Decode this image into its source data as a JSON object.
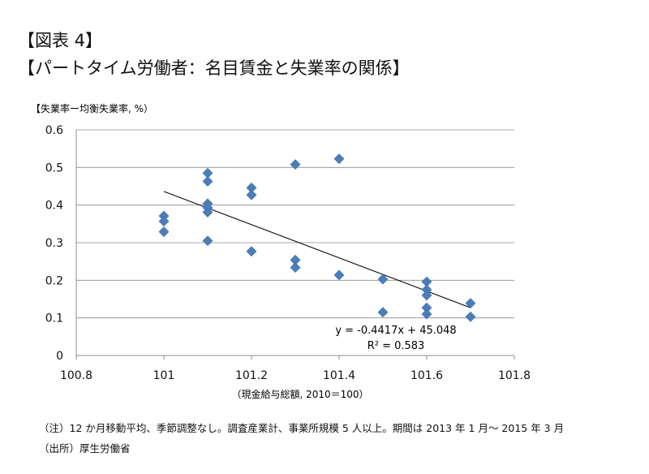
{
  "figure": {
    "number_label": "【図表 4】",
    "title": "【パートタイム労働者：名目賃金と失業率の関係】"
  },
  "chart_data": {
    "type": "scatter",
    "title": "【パートタイム労働者：名目賃金と失業率の関係】",
    "ylabel": "【失業率ー均衡失業率, %）",
    "xlabel": "（現金給与総額, 2010＝100）",
    "xlim": [
      100.8,
      101.8
    ],
    "ylim": [
      0,
      0.6
    ],
    "xticks": [
      "100.8",
      "101",
      "101.2",
      "101.4",
      "101.6",
      "101.8"
    ],
    "yticks": [
      "0",
      "0.1",
      "0.2",
      "0.3",
      "0.4",
      "0.5",
      "0.6"
    ],
    "grid": "horizontal",
    "marker_color": "#4a7ebb",
    "points": [
      {
        "x": 101.0,
        "y": 0.371
      },
      {
        "x": 101.0,
        "y": 0.357
      },
      {
        "x": 101.0,
        "y": 0.329
      },
      {
        "x": 101.1,
        "y": 0.485
      },
      {
        "x": 101.1,
        "y": 0.463
      },
      {
        "x": 101.1,
        "y": 0.404
      },
      {
        "x": 101.1,
        "y": 0.393
      },
      {
        "x": 101.1,
        "y": 0.381
      },
      {
        "x": 101.1,
        "y": 0.305
      },
      {
        "x": 101.2,
        "y": 0.446
      },
      {
        "x": 101.2,
        "y": 0.427
      },
      {
        "x": 101.2,
        "y": 0.277
      },
      {
        "x": 101.3,
        "y": 0.508
      },
      {
        "x": 101.3,
        "y": 0.254
      },
      {
        "x": 101.3,
        "y": 0.234
      },
      {
        "x": 101.4,
        "y": 0.523
      },
      {
        "x": 101.4,
        "y": 0.214
      },
      {
        "x": 101.5,
        "y": 0.203
      },
      {
        "x": 101.5,
        "y": 0.115
      },
      {
        "x": 101.6,
        "y": 0.196
      },
      {
        "x": 101.6,
        "y": 0.175
      },
      {
        "x": 101.6,
        "y": 0.16
      },
      {
        "x": 101.6,
        "y": 0.127
      },
      {
        "x": 101.6,
        "y": 0.11
      },
      {
        "x": 101.7,
        "y": 0.139
      },
      {
        "x": 101.7,
        "y": 0.103
      }
    ],
    "trendline": {
      "slope": -0.4417,
      "intercept": 45.048,
      "x_range": [
        101.0,
        101.7
      ],
      "equation_label": "y = -0.4417x + 45.048",
      "r2_label": "R² = 0.583"
    }
  },
  "notes": {
    "note": "（注）12 か月移動平均、季節調整なし。調査産業計、事業所規模 5 人以上。期間は 2013 年 1 月～ 2015 年 3 月",
    "source": "（出所）厚生労働省"
  }
}
